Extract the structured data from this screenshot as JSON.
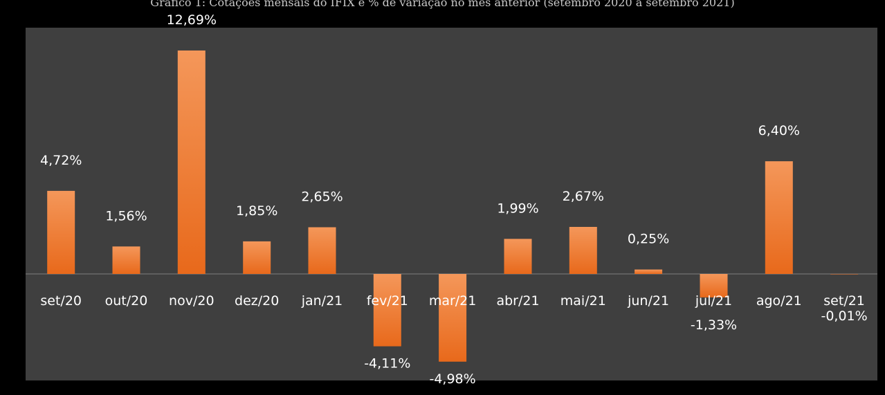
{
  "caption": "Gráfico 1: Cotações mensais do IFIX e % de variação no mês anterior (setembro 2020 a setembro 2021)",
  "colors": {
    "background": "#000000",
    "plot_background": "#3f3f3f",
    "bar_top": "#f4975a",
    "bar_bottom": "#e8691b",
    "text": "#ffffff",
    "axis": "#7f7f7f"
  },
  "chart_data": {
    "type": "bar",
    "title": "",
    "xlabel": "",
    "ylabel": "",
    "categories": [
      "set/20",
      "out/20",
      "nov/20",
      "dez/20",
      "jan/21",
      "fev/21",
      "mar/21",
      "abr/21",
      "mai/21",
      "jun/21",
      "jul/21",
      "ago/21",
      "set/21"
    ],
    "values": [
      4.72,
      1.56,
      12.69,
      1.85,
      2.65,
      -4.11,
      -4.98,
      1.99,
      2.67,
      0.25,
      -1.33,
      6.4,
      -0.01
    ],
    "value_labels": [
      "4,72%",
      "1,56%",
      "12,69%",
      "1,85%",
      "2,65%",
      "-4,11%",
      "-4,98%",
      "1,99%",
      "2,67%",
      "0,25%",
      "-1,33%",
      "6,40%",
      "-0,01%"
    ],
    "ylim": [
      -6.0,
      14.0
    ],
    "grid": false,
    "legend": "none"
  }
}
